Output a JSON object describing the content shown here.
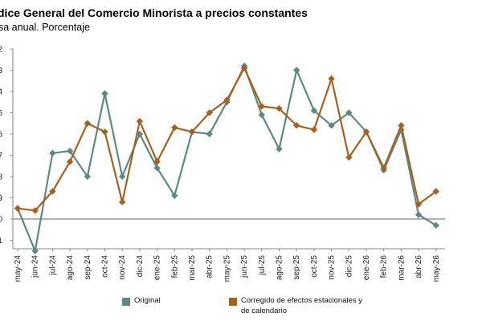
{
  "title": "dice General del Comercio Minorista a precios constantes",
  "subtitle": "sa anual. Porcentaje",
  "chart_data": {
    "type": "line",
    "categories": [
      "may-24",
      "jun-24",
      "jul-24",
      "ago-24",
      "sep-24",
      "oct-24",
      "nov-24",
      "dic-24",
      "ene-25",
      "feb-25",
      "mar-25",
      "abr-25",
      "may-25",
      "jun-25",
      "jul-25",
      "ago-25",
      "sep-25",
      "oct-25",
      "nov-25",
      "dic-25",
      "ene-26",
      "feb-26",
      "mar-26",
      "abr-26",
      "may-26"
    ],
    "y_tick_labels": [
      "2",
      "3",
      "4",
      "5",
      "6",
      "7",
      "8",
      "9",
      "0",
      "-1"
    ],
    "y_tick_values": [
      9.2,
      8.2,
      7.2,
      6.2,
      5.2,
      4.2,
      3.2,
      2.2,
      1.2,
      0.2
    ],
    "ylim": [
      -0.2,
      9.2
    ],
    "baseline": 1.2,
    "series": [
      {
        "name": "Original",
        "color": "#5b8a80",
        "values": [
          1.7,
          -0.3,
          4.3,
          4.4,
          3.2,
          7.1,
          3.2,
          5.2,
          3.6,
          2.3,
          5.3,
          5.2,
          6.7,
          8.4,
          6.1,
          4.5,
          8.2,
          6.3,
          5.6,
          6.2,
          5.3,
          3.5,
          5.4,
          1.4,
          0.9
        ]
      },
      {
        "name": "Corregido de efectos estacionales y de calendario",
        "color": "#a5611d",
        "values": [
          1.7,
          1.6,
          2.5,
          3.9,
          5.7,
          5.3,
          2.0,
          5.8,
          3.9,
          5.5,
          5.3,
          6.2,
          6.8,
          8.3,
          6.5,
          6.4,
          5.6,
          5.4,
          7.8,
          4.1,
          5.3,
          3.6,
          5.6,
          1.9,
          2.5
        ]
      }
    ],
    "legend_position": "bottom",
    "grid": false
  }
}
